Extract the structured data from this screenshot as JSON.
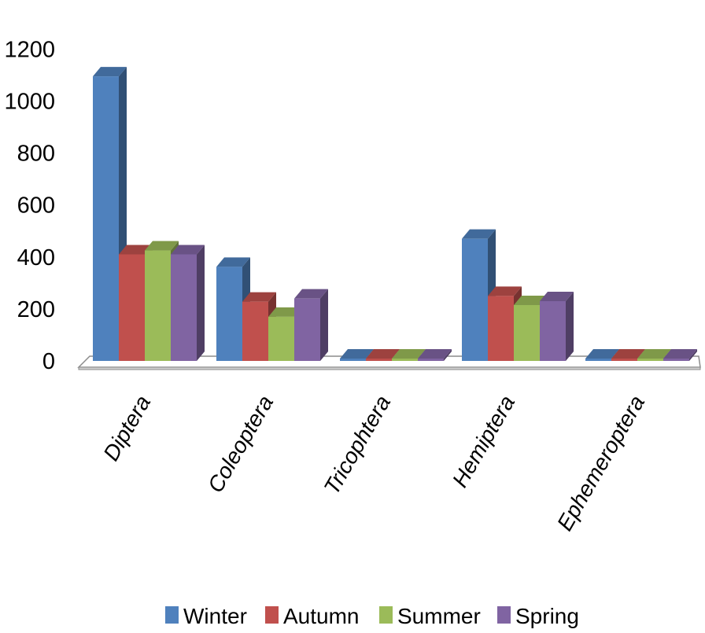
{
  "chart_data": {
    "type": "bar",
    "categories": [
      "Diptera",
      "Coleoptera",
      "Tricophtera",
      "Hemiptera",
      "Ephemeroptera"
    ],
    "series": [
      {
        "name": "Winter",
        "values": [
          1095,
          362,
          2,
          470,
          2
        ]
      },
      {
        "name": "Autumn",
        "values": [
          410,
          228,
          2,
          250,
          4
        ]
      },
      {
        "name": "Summer",
        "values": [
          425,
          170,
          2,
          215,
          2
        ]
      },
      {
        "name": "Spring",
        "values": [
          410,
          240,
          2,
          230,
          2
        ]
      }
    ],
    "y_ticks": [
      "0",
      "200",
      "400",
      "600",
      "800",
      "1000",
      "1200"
    ],
    "ylim": [
      0,
      1200
    ],
    "title": "",
    "xlabel": "",
    "ylabel": "",
    "legend_position": "bottom",
    "grid": false,
    "three_d": true
  },
  "colors": {
    "Winter": "#4F81BD",
    "Autumn": "#C0504D",
    "Summer": "#9BBB59",
    "Spring": "#8064A2"
  }
}
